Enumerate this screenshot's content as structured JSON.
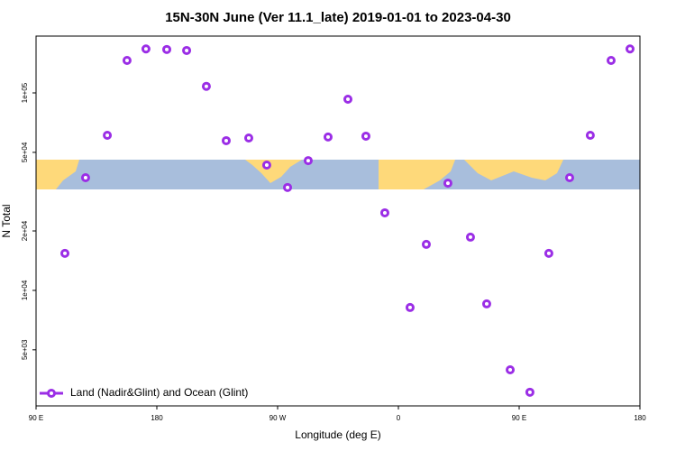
{
  "chart_data": {
    "type": "scatter",
    "title": "15N-30N June (Ver 11.1_late)   2019-01-01 to 2023-04-30",
    "x_label": "Longitude (deg E)",
    "y_label": "N Total",
    "xlim": [
      90,
      540
    ],
    "xticks": [
      {
        "value": 90,
        "label": "90 E"
      },
      {
        "value": 180,
        "label": "180"
      },
      {
        "value": 270,
        "label": "90 W"
      },
      {
        "value": 360,
        "label": "0"
      },
      {
        "value": 450,
        "label": "90 E"
      },
      {
        "value": 540,
        "label": "180"
      }
    ],
    "ylim": [
      2600,
      194000
    ],
    "log_y": true,
    "yticks": [
      {
        "value": 5000,
        "label": "5e+03"
      },
      {
        "value": 10000,
        "label": "1e+04"
      },
      {
        "value": 20000,
        "label": "2e+04"
      },
      {
        "value": 50000,
        "label": "5e+04"
      },
      {
        "value": 100000,
        "label": "1e+05"
      }
    ],
    "legend": "bottom-left",
    "series": [
      {
        "name": "Land (Nadir&Glint) and Ocean (Glint)",
        "color": "#9b2ee6",
        "x": [
          111.5,
          126.9,
          143.1,
          157.8,
          171.9,
          187.4,
          202.2,
          216.9,
          231.7,
          248.5,
          261.9,
          277.4,
          292.8,
          307.6,
          322.4,
          335.8,
          349.9,
          368.7,
          380.8,
          396.9,
          413.7,
          425.8,
          443.3,
          458.0,
          472.1,
          487.6,
          503.0,
          518.5,
          532.6
        ],
        "values": [
          15400,
          37200,
          61000,
          146000,
          167000,
          166000,
          164000,
          108000,
          57300,
          59100,
          43100,
          33200,
          45400,
          59800,
          92900,
          60400,
          24700,
          8190,
          17100,
          34900,
          18600,
          8540,
          3960,
          3050,
          15400,
          37200,
          61000,
          146000,
          167000
        ]
      }
    ]
  }
}
